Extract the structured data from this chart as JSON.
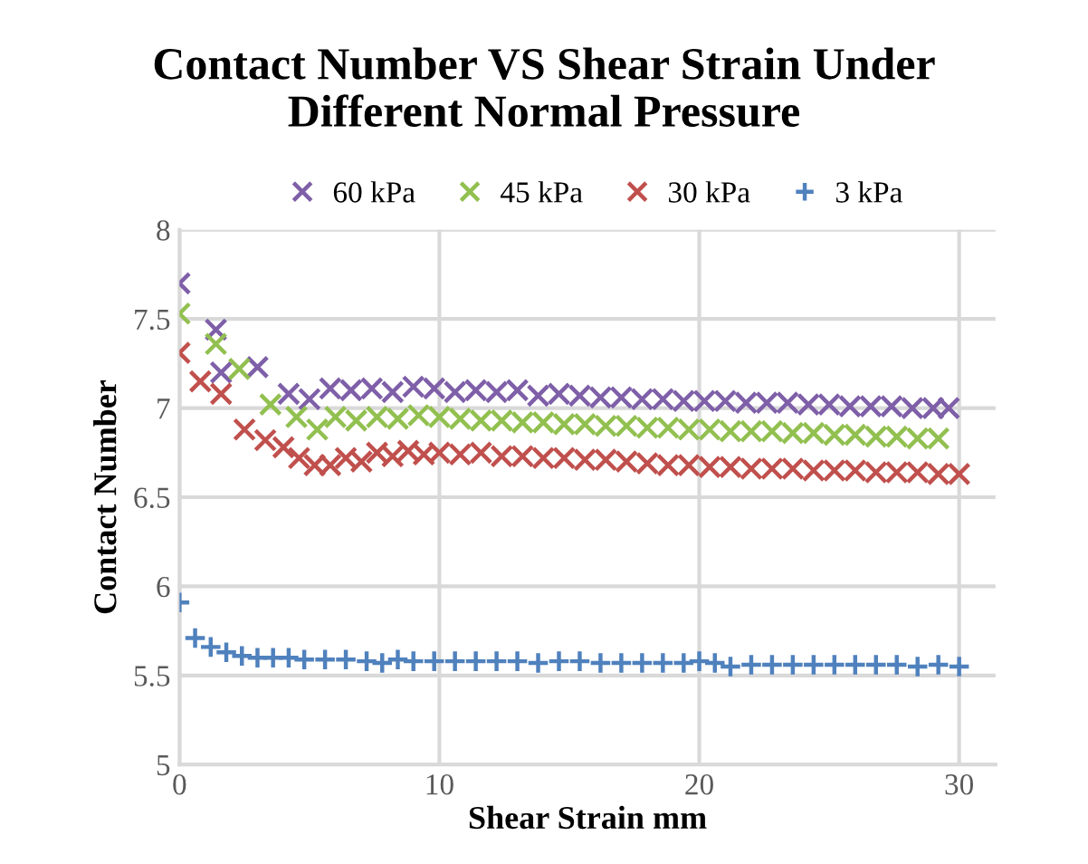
{
  "chart_data": {
    "type": "scatter",
    "title": "Contact Number VS Shear Strain Under Different Normal Pressure",
    "xlabel": "Shear Strain mm",
    "ylabel": "Contact Number",
    "xlim": [
      0,
      31.4
    ],
    "ylim": [
      5,
      8
    ],
    "xticks": [
      0,
      10,
      20,
      30
    ],
    "yticks": [
      5,
      5.5,
      6,
      6.5,
      7,
      7.5,
      8
    ],
    "grid": true,
    "legend": "top",
    "series": [
      {
        "name": "60 kPa",
        "color": "#7e5fa8",
        "marker": "cross",
        "x": [
          0,
          1.4,
          1.6,
          3.0,
          4.2,
          5.0,
          5.8,
          6.6,
          7.4,
          8.2,
          9.0,
          9.8,
          10.6,
          11.4,
          12.2,
          13.0,
          13.8,
          14.6,
          15.4,
          16.2,
          17.0,
          17.8,
          18.6,
          19.4,
          20.2,
          21.0,
          21.8,
          22.6,
          23.4,
          24.2,
          25.0,
          25.8,
          26.6,
          27.4,
          28.2,
          29.0,
          29.6
        ],
        "values": [
          7.7,
          7.44,
          7.2,
          7.23,
          7.08,
          7.05,
          7.11,
          7.1,
          7.11,
          7.09,
          7.12,
          7.11,
          7.09,
          7.1,
          7.09,
          7.1,
          7.07,
          7.08,
          7.07,
          7.06,
          7.06,
          7.05,
          7.05,
          7.04,
          7.04,
          7.04,
          7.03,
          7.03,
          7.03,
          7.02,
          7.02,
          7.01,
          7.01,
          7.01,
          7.0,
          7.0,
          7.0
        ]
      },
      {
        "name": "45 kPa",
        "color": "#92c050",
        "marker": "cross",
        "x": [
          0,
          1.4,
          2.3,
          3.5,
          4.5,
          5.3,
          6.0,
          6.8,
          7.6,
          8.4,
          9.2,
          10.0,
          10.8,
          11.6,
          12.4,
          13.2,
          14.0,
          14.8,
          15.6,
          16.4,
          17.2,
          18.0,
          18.8,
          19.6,
          20.4,
          21.2,
          22.0,
          22.8,
          23.6,
          24.4,
          25.2,
          26.0,
          26.8,
          27.6,
          28.4,
          29.2
        ],
        "values": [
          7.53,
          7.36,
          7.22,
          7.02,
          6.95,
          6.88,
          6.95,
          6.93,
          6.95,
          6.94,
          6.96,
          6.95,
          6.94,
          6.93,
          6.93,
          6.92,
          6.92,
          6.91,
          6.91,
          6.9,
          6.9,
          6.89,
          6.89,
          6.88,
          6.88,
          6.87,
          6.87,
          6.87,
          6.86,
          6.86,
          6.85,
          6.85,
          6.84,
          6.84,
          6.83,
          6.83
        ]
      },
      {
        "name": "30 kPa",
        "color": "#c0504d",
        "marker": "cross",
        "x": [
          0,
          0.8,
          1.6,
          2.5,
          3.3,
          4.0,
          4.6,
          5.2,
          5.8,
          6.4,
          7.0,
          7.6,
          8.2,
          8.8,
          9.4,
          10.0,
          10.8,
          11.6,
          12.4,
          13.2,
          14.0,
          14.8,
          15.6,
          16.4,
          17.2,
          18.0,
          18.8,
          19.6,
          20.4,
          21.2,
          22.0,
          22.8,
          23.6,
          24.4,
          25.2,
          26.0,
          26.8,
          27.6,
          28.4,
          29.2,
          30.0
        ],
        "values": [
          7.31,
          7.15,
          7.08,
          6.88,
          6.82,
          6.78,
          6.72,
          6.68,
          6.68,
          6.72,
          6.7,
          6.75,
          6.73,
          6.76,
          6.74,
          6.75,
          6.74,
          6.75,
          6.73,
          6.73,
          6.72,
          6.72,
          6.71,
          6.71,
          6.7,
          6.69,
          6.68,
          6.68,
          6.67,
          6.67,
          6.66,
          6.66,
          6.66,
          6.65,
          6.65,
          6.65,
          6.64,
          6.64,
          6.64,
          6.63,
          6.63
        ]
      },
      {
        "name": "3 kPa",
        "color": "#4f81bd",
        "marker": "plus",
        "x": [
          0,
          0.6,
          1.2,
          1.8,
          2.4,
          3.0,
          3.6,
          4.2,
          4.8,
          5.6,
          6.4,
          7.2,
          7.8,
          8.4,
          9.0,
          9.8,
          10.6,
          11.4,
          12.2,
          13.0,
          13.8,
          14.6,
          15.4,
          16.2,
          17.0,
          17.8,
          18.6,
          19.4,
          20.0,
          20.6,
          21.2,
          22.0,
          22.8,
          23.6,
          24.4,
          25.2,
          26.0,
          26.8,
          27.6,
          28.4,
          29.2,
          30.0
        ],
        "values": [
          5.91,
          5.71,
          5.66,
          5.63,
          5.61,
          5.6,
          5.6,
          5.6,
          5.59,
          5.59,
          5.59,
          5.58,
          5.57,
          5.59,
          5.58,
          5.58,
          5.58,
          5.58,
          5.58,
          5.58,
          5.57,
          5.58,
          5.58,
          5.57,
          5.57,
          5.57,
          5.57,
          5.57,
          5.58,
          5.57,
          5.55,
          5.56,
          5.56,
          5.56,
          5.56,
          5.56,
          5.56,
          5.56,
          5.56,
          5.55,
          5.56,
          5.55
        ]
      }
    ]
  }
}
